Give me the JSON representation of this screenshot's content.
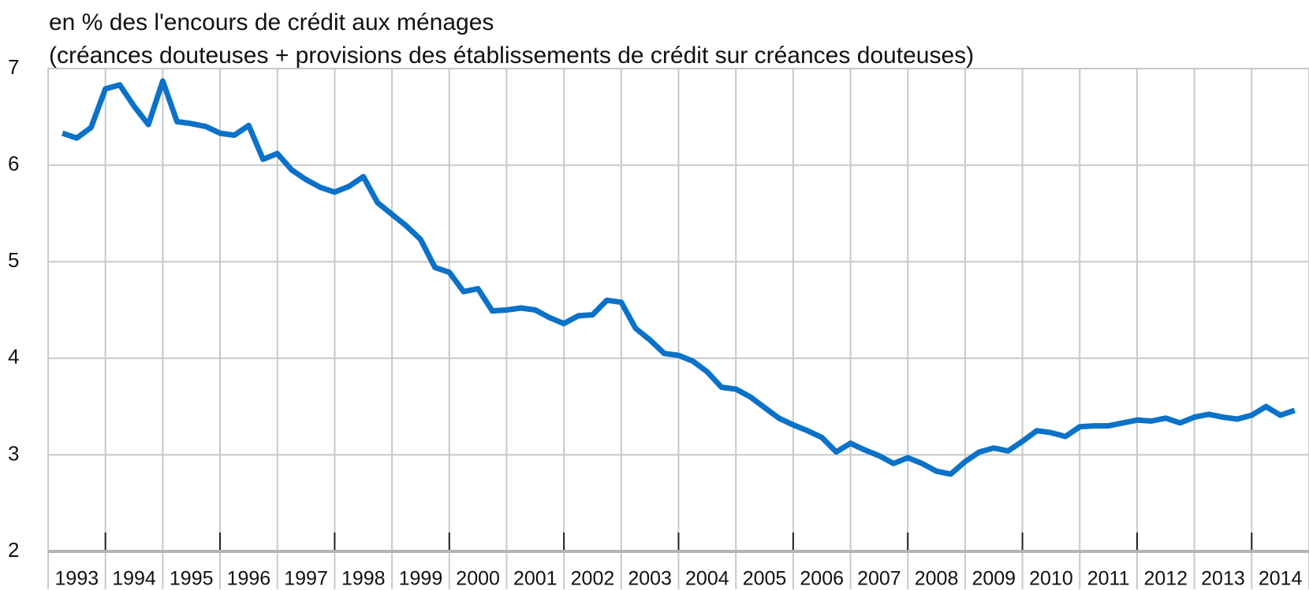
{
  "chart_data": {
    "type": "line",
    "title": "en % des l'encours de crédit aux ménages",
    "subtitle": "(créances douteuses + provisions des établissements de crédit sur créances douteuses)",
    "categories": [
      null,
      "1993",
      null,
      null,
      null,
      "1994",
      null,
      null,
      null,
      "1995",
      null,
      null,
      null,
      "1996",
      null,
      null,
      null,
      "1997",
      null,
      null,
      null,
      "1998",
      null,
      null,
      null,
      "1999",
      null,
      null,
      null,
      "2000",
      null,
      null,
      null,
      "2001",
      null,
      null,
      null,
      "2002",
      null,
      null,
      null,
      "2003",
      null,
      null,
      null,
      "2004",
      null,
      null,
      null,
      "2005",
      null,
      null,
      null,
      "2006",
      null,
      null,
      null,
      "2007",
      null,
      null,
      null,
      "2008",
      null,
      null,
      null,
      "2009",
      null,
      null,
      null,
      "2010",
      null,
      null,
      null,
      "2011",
      null,
      null,
      null,
      "2012",
      null,
      null,
      null,
      "2013",
      null,
      null,
      null,
      "2014",
      null,
      null
    ],
    "series": [
      {
        "color": "#0a72c8",
        "values": [
          6.33,
          6.28,
          6.39,
          6.79,
          6.83,
          6.61,
          6.42,
          6.87,
          6.45,
          6.43,
          6.4,
          6.33,
          6.31,
          6.41,
          6.06,
          6.12,
          5.95,
          5.85,
          5.77,
          5.72,
          5.78,
          5.88,
          5.61,
          5.49,
          5.37,
          5.23,
          4.94,
          4.89,
          4.69,
          4.72,
          4.49,
          4.5,
          4.52,
          4.5,
          4.42,
          4.36,
          4.44,
          4.45,
          4.6,
          4.58,
          4.31,
          4.19,
          4.05,
          4.03,
          3.97,
          3.86,
          3.7,
          3.68,
          3.6,
          3.49,
          3.38,
          3.31,
          3.25,
          3.18,
          3.03,
          3.12,
          3.05,
          2.99,
          2.91,
          2.97,
          2.91,
          2.83,
          2.8,
          2.93,
          3.03,
          3.07,
          3.04,
          3.14,
          3.25,
          3.23,
          3.19,
          3.29,
          3.3,
          3.3,
          3.33,
          3.36,
          3.35,
          3.38,
          3.33,
          3.39,
          3.42,
          3.39,
          3.37,
          3.41,
          3.5,
          3.41,
          3.46,
          null
        ]
      }
    ],
    "ylim": [
      2,
      7
    ],
    "yticks": [
      2,
      3,
      4,
      5,
      6,
      7
    ],
    "grid": true
  }
}
